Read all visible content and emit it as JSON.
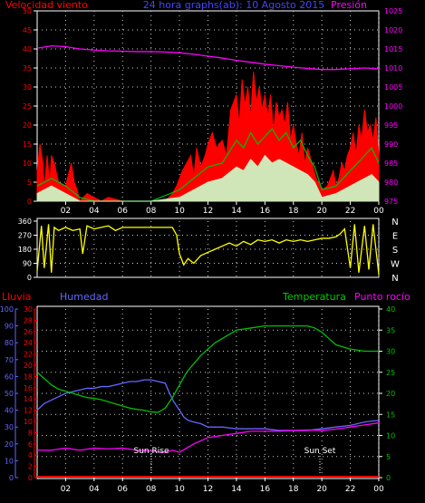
{
  "header": {
    "left": "Velocidad viento",
    "center": "24 hora graphs(ab): 10 Agosto 2015",
    "right": "Presión"
  },
  "colors": {
    "background": "#000000",
    "grid": "#cccccc",
    "axis": "#ffffff",
    "wind": "#ff0000",
    "gust": "#00c000",
    "avg": "#ccffcc",
    "pressure": "#ff00ff",
    "direction": "#ffff00",
    "rain": "#ff0000",
    "humidity": "#6666ff",
    "temperature": "#00c000",
    "dewpoint": "#ff00ff",
    "titleBlue": "#4444ff",
    "titleRed": "#ff0000",
    "titleGreen": "#00cc00",
    "titleMagenta": "#ff00ff"
  },
  "chart_data": [
    {
      "type": "line",
      "title": "24 hora graphs(ab): 10 Agosto 2015",
      "xticks": [
        "02",
        "04",
        "06",
        "08",
        "10",
        "12",
        "14",
        "16",
        "18",
        "20",
        "22",
        "00"
      ],
      "y_left_label": "Velocidad viento",
      "y_left_ticks": [
        0,
        5,
        10,
        15,
        20,
        25,
        30,
        35,
        40,
        45,
        50
      ],
      "ylim_left": [
        0,
        50
      ],
      "y_right_label": "Presión",
      "y_right_ticks": [
        975,
        980,
        985,
        990,
        995,
        1000,
        1005,
        1010,
        1015,
        1020,
        1025
      ],
      "ylim_right": [
        975,
        1025
      ],
      "series": [
        {
          "name": "Velocidad viento",
          "x": [
            0,
            0.2,
            0.4,
            0.5,
            0.7,
            0.8,
            0.9,
            1.0,
            1.2,
            1.5,
            2.0,
            2.4,
            2.6,
            2.8,
            3.0,
            3.5,
            4.0,
            4.5,
            5.0,
            6.0,
            7.0,
            8.0,
            9.0,
            9.5,
            9.8,
            10.0,
            10.2,
            10.5,
            10.8,
            11.0,
            11.2,
            11.5,
            11.8,
            12.0,
            12.3,
            12.6,
            13.0,
            13.3,
            13.6,
            14.0,
            14.2,
            14.4,
            14.6,
            14.8,
            15.0,
            15.2,
            15.4,
            15.6,
            15.8,
            16.0,
            16.2,
            16.4,
            16.6,
            16.8,
            17.0,
            17.2,
            17.4,
            17.6,
            17.8,
            18.0,
            18.2,
            18.4,
            18.6,
            18.8,
            19.0,
            19.3,
            19.6,
            20.0,
            20.4,
            20.8,
            21.0,
            21.2,
            21.4,
            21.6,
            21.8,
            22.0,
            22.2,
            22.4,
            22.6,
            22.8,
            23.0,
            23.2,
            23.4,
            23.6,
            23.8,
            24.0
          ],
          "y": [
            8,
            15,
            10,
            3,
            12,
            8,
            5,
            12,
            10,
            5,
            4,
            10,
            5,
            3,
            0,
            2,
            1,
            0,
            1,
            0,
            0,
            0,
            0,
            2,
            4,
            6,
            8,
            10,
            12,
            6,
            14,
            9,
            12,
            15,
            18,
            14,
            16,
            12,
            24,
            28,
            20,
            32,
            25,
            30,
            22,
            34,
            26,
            30,
            24,
            28,
            22,
            28,
            18,
            26,
            22,
            24,
            20,
            26,
            16,
            20,
            15,
            12,
            18,
            10,
            14,
            10,
            6,
            3,
            4,
            8,
            4,
            6,
            10,
            8,
            12,
            14,
            18,
            12,
            20,
            16,
            24,
            18,
            20,
            16,
            22,
            12
          ],
          "color": "#ff0000"
        },
        {
          "name": "",
          "x": [
            0,
            1,
            2,
            3,
            4,
            6,
            8,
            10,
            11,
            12,
            13,
            14,
            14.5,
            15,
            15.5,
            16,
            16.5,
            17,
            17.5,
            18,
            18.5,
            19,
            19.5,
            20,
            21,
            22,
            22.5,
            23,
            23.5,
            24
          ],
          "y": [
            4,
            6,
            4,
            1,
            0,
            0,
            0,
            3,
            6,
            9,
            10,
            16,
            14,
            18,
            15,
            17,
            19,
            16,
            18,
            14,
            16,
            12,
            9,
            3,
            4,
            8,
            10,
            12,
            14,
            10
          ],
          "color": "#00c000"
        },
        {
          "name": "",
          "x": [
            0,
            1,
            2,
            3,
            4,
            6,
            8,
            10,
            11,
            12,
            13,
            14,
            14.5,
            15,
            15.5,
            16,
            16.5,
            17,
            17.5,
            18,
            18.5,
            19,
            19.5,
            20,
            21,
            22,
            22.5,
            23,
            23.5,
            24
          ],
          "y": [
            2,
            4,
            2,
            0,
            0,
            0,
            0,
            1,
            3,
            5,
            6,
            9,
            8,
            11,
            9,
            12,
            10,
            11,
            10,
            9,
            8,
            7,
            5,
            1,
            2,
            4,
            5,
            6,
            7,
            5
          ],
          "color": "#ccffcc"
        },
        {
          "name": "Presión",
          "x": [
            0,
            1,
            2,
            3,
            4,
            5,
            6,
            7,
            8,
            9,
            10,
            11,
            12,
            13,
            14,
            15,
            16,
            17,
            18,
            19,
            20,
            21,
            22,
            23,
            24
          ],
          "y": [
            1015.2,
            1015.8,
            1015.6,
            1015.0,
            1014.7,
            1014.5,
            1014.4,
            1014.3,
            1014.3,
            1014.2,
            1014.0,
            1013.6,
            1013.1,
            1012.6,
            1012.0,
            1011.5,
            1011.0,
            1010.6,
            1010.2,
            1009.9,
            1009.6,
            1009.6,
            1009.8,
            1010.0,
            1009.8
          ],
          "color": "#ff00ff"
        }
      ]
    },
    {
      "type": "line",
      "xticks": [],
      "y_left_ticks": [
        0,
        90,
        180,
        270,
        360
      ],
      "ylim_left": [
        0,
        360
      ],
      "y_right_ticks": [
        "N",
        "W",
        "S",
        "E",
        "N"
      ],
      "series": [
        {
          "name": "",
          "x": [
            0,
            0.3,
            0.5,
            0.8,
            1.0,
            1.2,
            1.5,
            2.0,
            2.5,
            3.0,
            3.2,
            3.5,
            4.0,
            4.5,
            5.0,
            5.5,
            6.0,
            7.0,
            8.0,
            9.0,
            9.5,
            9.8,
            10.0,
            10.3,
            10.6,
            11.0,
            11.5,
            12.0,
            12.5,
            13.0,
            13.5,
            14.0,
            14.5,
            15.0,
            15.5,
            16.0,
            16.5,
            17.0,
            17.5,
            18.0,
            18.5,
            19.0,
            19.5,
            20.0,
            20.5,
            21.0,
            21.3,
            21.6,
            22.0,
            22.3,
            22.6,
            23.0,
            23.3,
            23.6,
            24.0
          ],
          "y": [
            40,
            330,
            60,
            340,
            30,
            320,
            300,
            320,
            300,
            310,
            150,
            330,
            310,
            320,
            330,
            300,
            320,
            320,
            320,
            320,
            320,
            270,
            150,
            80,
            120,
            90,
            140,
            160,
            180,
            200,
            220,
            200,
            230,
            210,
            240,
            230,
            240,
            220,
            240,
            230,
            240,
            230,
            240,
            250,
            250,
            260,
            280,
            310,
            60,
            340,
            30,
            330,
            50,
            340,
            20
          ],
          "color": "#ffff00"
        }
      ]
    },
    {
      "type": "line",
      "xticks": [
        "02",
        "04",
        "06",
        "08",
        "10",
        "12",
        "14",
        "16",
        "18",
        "20",
        "22",
        "00"
      ],
      "y_lluvia_label": "Lluvia",
      "y_lluvia_ticks": [
        0,
        10,
        20,
        30,
        40,
        50,
        60,
        70,
        80,
        90,
        100
      ],
      "y_humedad_label": "Humedad",
      "y_humedad_ticks": [
        0,
        2,
        4,
        6,
        8,
        10,
        12,
        14,
        16,
        18,
        20,
        22,
        24,
        26,
        28,
        30
      ],
      "y_right_label": "Temperatura",
      "y_right_ticks": [
        0,
        5,
        10,
        15,
        20,
        25,
        30,
        35,
        40
      ],
      "y_right_title2": "Punto rocío",
      "annotations": [
        "Sun Rise",
        "Sun Set"
      ],
      "series": [
        {
          "name": "Lluvia",
          "x": [
            0,
            24
          ],
          "y": [
            0,
            0
          ],
          "color": "#ff0000"
        },
        {
          "name": "Humedad",
          "x": [
            0,
            0.5,
            1,
            1.5,
            2,
            2.5,
            3,
            3.5,
            4,
            4.5,
            5,
            5.5,
            6,
            6.5,
            7,
            7.5,
            8,
            8.5,
            9,
            9.3,
            9.6,
            10,
            10.3,
            10.6,
            11,
            11.5,
            12,
            13,
            14,
            15,
            16,
            17,
            18,
            19,
            20,
            21,
            22,
            23,
            24
          ],
          "y": [
            40,
            44,
            46,
            48,
            50,
            51,
            52,
            53,
            53,
            54,
            54,
            55,
            56,
            57,
            57,
            58,
            58,
            57,
            56,
            50,
            45,
            40,
            36,
            34,
            33,
            32,
            30,
            30,
            29,
            29,
            29,
            28,
            28,
            28,
            29,
            30,
            31,
            33,
            34
          ],
          "color": "#6666ff"
        },
        {
          "name": "Temperatura",
          "x": [
            0,
            0.5,
            1,
            1.5,
            2,
            2.5,
            3,
            3.5,
            4,
            4.5,
            5,
            5.5,
            6,
            6.5,
            7,
            7.5,
            8,
            8.5,
            9,
            9.5,
            10,
            10.5,
            11,
            11.5,
            12,
            12.5,
            13,
            13.5,
            14,
            15,
            16,
            17,
            18,
            19,
            19.5,
            20,
            20.5,
            21,
            22,
            23,
            24
          ],
          "y": [
            25,
            23.5,
            22,
            21,
            20.5,
            20,
            19.5,
            19,
            18.8,
            18.5,
            18,
            17.5,
            17,
            16.5,
            16.2,
            16,
            15.6,
            15.5,
            16.5,
            19,
            22,
            25,
            27,
            29,
            30.5,
            32,
            33,
            34,
            35,
            35.5,
            36,
            36,
            36,
            36,
            35.5,
            34.5,
            33,
            31.5,
            30.5,
            30,
            30
          ],
          "color": "#00c000"
        },
        {
          "name": "Punto rocío",
          "x": [
            0,
            1,
            2,
            3,
            4,
            5,
            6,
            7,
            8,
            9,
            9.5,
            10,
            10.5,
            11,
            12,
            13,
            14,
            15,
            16,
            17,
            18,
            19,
            20,
            21,
            22,
            23,
            24
          ],
          "y": [
            6.5,
            6.5,
            7,
            6.5,
            7,
            6.8,
            7,
            6.5,
            6.3,
            6,
            6.5,
            6,
            7,
            8,
            9.5,
            10,
            10.5,
            11,
            11,
            11,
            11.2,
            11.3,
            11.2,
            11.5,
            12,
            12.5,
            13
          ],
          "color": "#ff00ff"
        }
      ]
    }
  ]
}
